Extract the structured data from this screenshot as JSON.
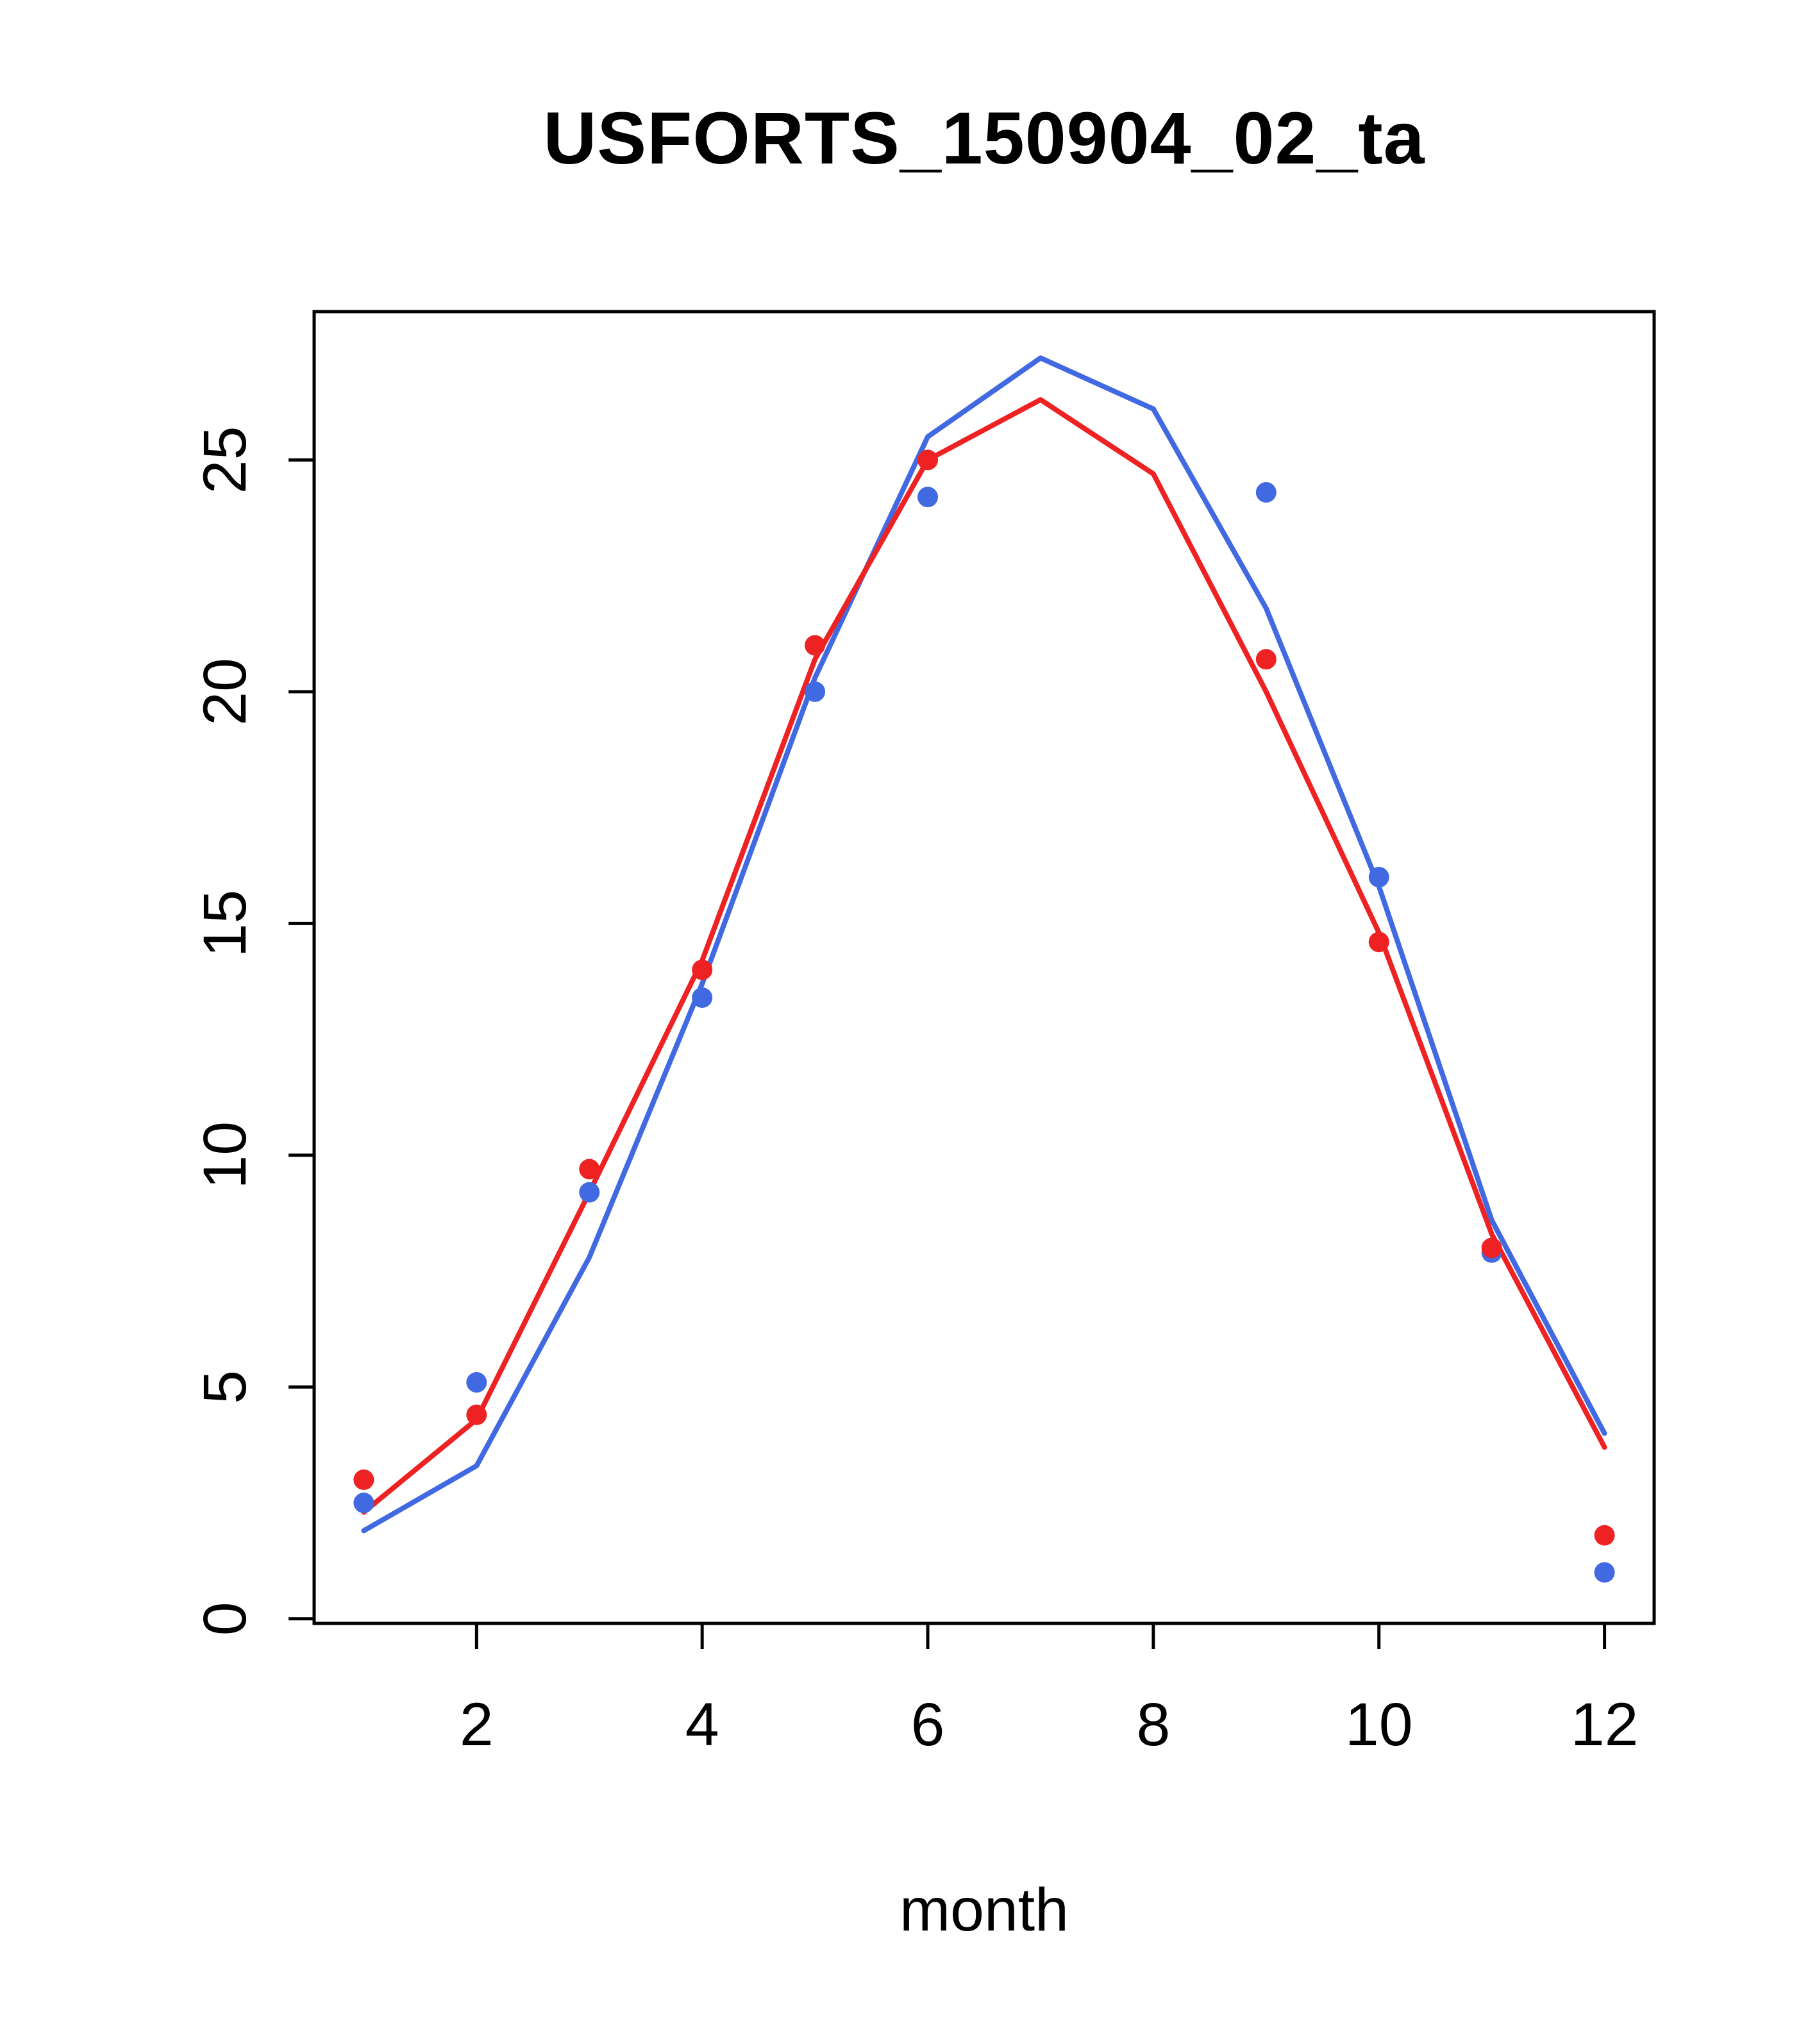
{
  "title": "USFORTS_150904_02_ta",
  "xlabel": "month",
  "colors": {
    "blue": "#4169e1",
    "red": "#ee2222",
    "axis": "#000000",
    "background": "#ffffff"
  },
  "chart_data": {
    "type": "line",
    "title": "USFORTS_150904_02_ta",
    "xlabel": "month",
    "ylabel": "",
    "x": [
      1,
      2,
      3,
      4,
      5,
      6,
      7,
      8,
      9,
      10,
      11,
      12
    ],
    "xlim": [
      0.56,
      12.44
    ],
    "ylim": [
      -0.1,
      28.2
    ],
    "x_ticks": [
      2,
      4,
      6,
      8,
      10,
      12
    ],
    "y_ticks": [
      0,
      5,
      10,
      15,
      20,
      25
    ],
    "grid": false,
    "legend": "none",
    "series": [
      {
        "name": "blue-line",
        "type": "line",
        "color": "blue",
        "values": [
          1.9,
          3.3,
          7.8,
          13.7,
          20.3,
          25.5,
          27.2,
          26.1,
          21.8,
          15.8,
          8.6,
          4.0
        ]
      },
      {
        "name": "red-line",
        "type": "line",
        "color": "red",
        "values": [
          2.3,
          4.3,
          9.2,
          14.2,
          20.7,
          25.0,
          26.3,
          24.7,
          20.0,
          14.8,
          8.3,
          3.7
        ]
      },
      {
        "name": "blue-points",
        "type": "scatter",
        "color": "blue",
        "values": [
          2.5,
          5.1,
          9.2,
          13.4,
          20.0,
          24.2,
          null,
          null,
          24.3,
          16.0,
          7.9,
          1.0
        ]
      },
      {
        "name": "red-points",
        "type": "scatter",
        "color": "red",
        "values": [
          3.0,
          4.4,
          9.7,
          14.0,
          21.0,
          25.0,
          null,
          null,
          20.7,
          14.6,
          8.0,
          1.8
        ]
      }
    ]
  }
}
